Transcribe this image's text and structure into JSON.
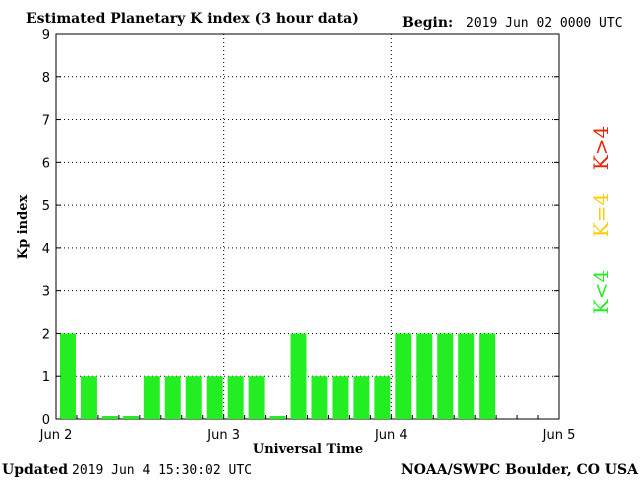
{
  "header": {
    "title": "Estimated Planetary K index (3 hour data)",
    "begin_label": "Begin:",
    "begin_value": "2019 Jun 02 0000 UTC"
  },
  "footer": {
    "updated_label": "Updated",
    "updated_value": "2019 Jun  4 15:30:02 UTC",
    "source": "NOAA/SWPC Boulder, CO USA"
  },
  "legend": {
    "low": "K<4",
    "mid": "K=4",
    "high": "K>4"
  },
  "colors": {
    "low": "#22ee22",
    "mid": "#ffcc00",
    "high": "#ee2200",
    "grid": "#000000"
  },
  "chart_data": {
    "type": "bar",
    "title": "Estimated Planetary K index (3 hour data)",
    "xlabel": "Universal Time",
    "ylabel": "Kp index",
    "ylim": [
      0,
      9
    ],
    "yticks": [
      0,
      1,
      2,
      3,
      4,
      5,
      6,
      7,
      8,
      9
    ],
    "xticks": [
      "Jun 2",
      "Jun 3",
      "Jun 4",
      "Jun 5"
    ],
    "interval_hours": 3,
    "grid": true,
    "values": [
      2,
      1,
      0.07,
      0.07,
      1,
      1,
      1,
      1,
      1,
      1,
      0.07,
      2,
      1,
      1,
      1,
      1,
      2,
      2,
      2,
      2,
      2
    ]
  }
}
